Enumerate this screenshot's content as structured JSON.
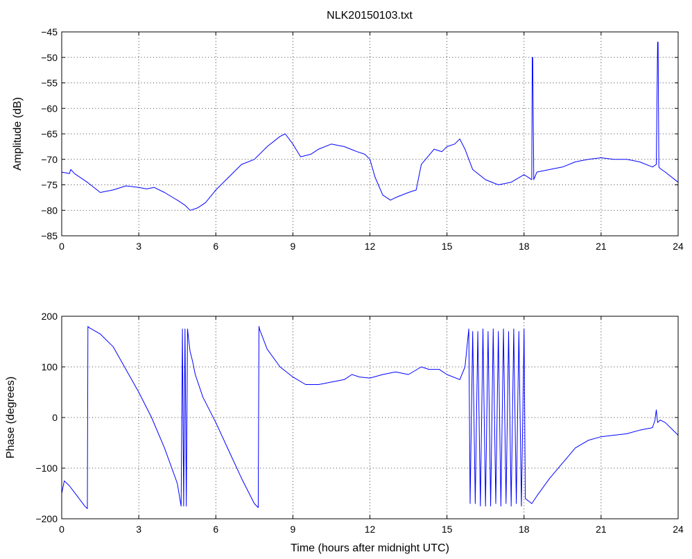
{
  "figure_title": "NLK20150103.txt",
  "chart_data": [
    {
      "type": "line",
      "title": "NLK20150103.txt",
      "xlabel": "",
      "ylabel": "Amplitude (dB)",
      "xlim": [
        0,
        24
      ],
      "ylim": [
        -85,
        -45
      ],
      "xticks": [
        0,
        3,
        6,
        9,
        12,
        15,
        18,
        21,
        24
      ],
      "yticks": [
        -85,
        -80,
        -75,
        -70,
        -65,
        -60,
        -55,
        -50,
        -45
      ],
      "grid": true,
      "series_color": "#0000ff",
      "series": [
        {
          "x": [
            0,
            0.3,
            0.35,
            0.5,
            1.0,
            1.5,
            2.0,
            2.5,
            3.0,
            3.3,
            3.6,
            4.0,
            4.5,
            4.8,
            5.0,
            5.3,
            5.6,
            6.0,
            6.5,
            7.0,
            7.5,
            8.0,
            8.5,
            8.7,
            9.0,
            9.3,
            9.7,
            10.0,
            10.5,
            11.0,
            11.5,
            11.8,
            12.0,
            12.2,
            12.5,
            12.8,
            13.0,
            13.5,
            13.8,
            14.0,
            14.5,
            14.8,
            15.0,
            15.3,
            15.5,
            15.7,
            16.0,
            16.5,
            17.0,
            17.5,
            18.0,
            18.3,
            18.32,
            18.34,
            18.38,
            18.5,
            19.0,
            19.5,
            20.0,
            20.5,
            21.0,
            21.5,
            22.0,
            22.5,
            23.0,
            23.15,
            23.2,
            23.22,
            23.25,
            23.3,
            23.5,
            24.0
          ],
          "y": [
            -72.5,
            -72.8,
            -72.0,
            -72.8,
            -74.5,
            -76.5,
            -76.0,
            -75.2,
            -75.5,
            -75.8,
            -75.5,
            -76.5,
            -78.0,
            -79.0,
            -80.0,
            -79.5,
            -78.5,
            -76.0,
            -73.5,
            -71.0,
            -70.0,
            -67.5,
            -65.5,
            -65.0,
            -67.0,
            -69.5,
            -69.0,
            -68.0,
            -67.0,
            -67.5,
            -68.5,
            -69.0,
            -70.0,
            -73.5,
            -77.0,
            -78.0,
            -77.5,
            -76.5,
            -76.0,
            -71.0,
            -68.0,
            -68.5,
            -67.5,
            -67.0,
            -66.0,
            -68.0,
            -72.0,
            -74.0,
            -75.0,
            -74.5,
            -73.0,
            -74.0,
            -50.0,
            -50.0,
            -74.0,
            -72.5,
            -72.0,
            -71.5,
            -70.5,
            -70.0,
            -69.7,
            -70.0,
            -70.0,
            -70.5,
            -71.5,
            -71.0,
            -47.0,
            -47.0,
            -71.5,
            -71.8,
            -72.5,
            -74.5
          ]
        }
      ]
    },
    {
      "type": "line",
      "title": "",
      "xlabel": "Time (hours after midnight UTC)",
      "ylabel": "Phase (degrees)",
      "xlim": [
        0,
        24
      ],
      "ylim": [
        -200,
        200
      ],
      "xticks": [
        0,
        3,
        6,
        9,
        12,
        15,
        18,
        21,
        24
      ],
      "yticks": [
        -200,
        -100,
        0,
        100,
        200
      ],
      "grid": true,
      "series_color": "#0000ff",
      "series": [
        {
          "x": [
            0,
            0.1,
            0.3,
            0.6,
            0.9,
            1.0,
            1.02,
            1.05,
            1.5,
            2.0,
            2.5,
            3.0,
            3.5,
            4.0,
            4.5,
            4.65,
            4.7,
            4.75,
            4.8,
            4.85,
            4.9,
            4.95,
            5.0,
            5.05,
            5.1,
            5.2,
            5.5,
            6.0,
            6.5,
            7.0,
            7.5,
            7.65,
            7.68,
            7.7,
            8.0,
            8.5,
            9.0,
            9.5,
            10.0,
            10.5,
            11.0,
            11.3,
            11.6,
            12.0,
            12.5,
            13.0,
            13.5,
            14.0,
            14.3,
            14.7,
            15.0,
            15.5,
            15.7,
            15.85,
            15.9,
            16.0,
            16.1,
            16.2,
            16.3,
            16.4,
            16.5,
            16.6,
            16.7,
            16.8,
            16.9,
            17.0,
            17.1,
            17.2,
            17.3,
            17.4,
            17.5,
            17.6,
            17.7,
            17.8,
            17.9,
            18.0,
            18.05,
            18.3,
            18.5,
            19.0,
            19.5,
            20.0,
            20.5,
            21.0,
            21.5,
            22.0,
            22.5,
            23.0,
            23.1,
            23.15,
            23.2,
            23.3,
            23.5,
            24.0
          ],
          "y": [
            -150,
            -125,
            -135,
            -155,
            -175,
            -180,
            180,
            178,
            165,
            140,
            95,
            50,
            0,
            -60,
            -130,
            -175,
            175,
            -175,
            175,
            -175,
            175,
            150,
            130,
            120,
            110,
            85,
            40,
            -10,
            -65,
            -120,
            -170,
            -178,
            180,
            175,
            135,
            100,
            80,
            65,
            65,
            70,
            75,
            85,
            80,
            78,
            85,
            90,
            85,
            100,
            95,
            95,
            85,
            75,
            100,
            175,
            -170,
            170,
            -170,
            170,
            -175,
            175,
            -175,
            170,
            -175,
            175,
            -170,
            170,
            -175,
            175,
            -170,
            170,
            -175,
            175,
            -170,
            170,
            -175,
            175,
            -160,
            -170,
            -155,
            -120,
            -90,
            -60,
            -45,
            -38,
            -35,
            -32,
            -25,
            -20,
            -5,
            15,
            -10,
            -5,
            -10,
            -35
          ]
        }
      ]
    }
  ]
}
